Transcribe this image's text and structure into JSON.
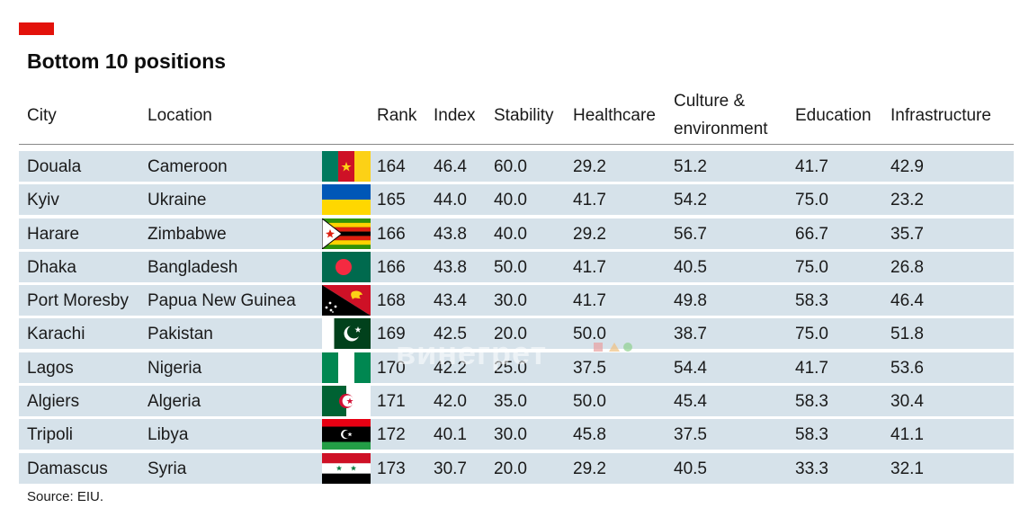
{
  "title": "Bottom 10 positions",
  "accent_color": "#e3120b",
  "row_color": "#d6e2ea",
  "headers": {
    "city": "City",
    "location": "Location",
    "rank": "Rank",
    "index": "Index",
    "stability": "Stability",
    "healthcare": "Healthcare",
    "culture_line1": "Culture &",
    "culture_line2": "environment",
    "education": "Education",
    "infrastructure": "Infrastructure"
  },
  "rows": [
    {
      "city": "Douala",
      "location": "Cameroon",
      "flag": "cameroon-flag",
      "rank": "164",
      "index": "46.4",
      "stability": "60.0",
      "healthcare": "29.2",
      "culture": "51.2",
      "education": "41.7",
      "infrastructure": "42.9"
    },
    {
      "city": "Kyiv",
      "location": "Ukraine",
      "flag": "ukraine-flag",
      "rank": "165",
      "index": "44.0",
      "stability": "40.0",
      "healthcare": "41.7",
      "culture": "54.2",
      "education": "75.0",
      "infrastructure": "23.2"
    },
    {
      "city": "Harare",
      "location": "Zimbabwe",
      "flag": "zimbabwe-flag",
      "rank": "166",
      "index": "43.8",
      "stability": "40.0",
      "healthcare": "29.2",
      "culture": "56.7",
      "education": "66.7",
      "infrastructure": "35.7"
    },
    {
      "city": "Dhaka",
      "location": "Bangladesh",
      "flag": "bangladesh-flag",
      "rank": "166",
      "index": "43.8",
      "stability": "50.0",
      "healthcare": "41.7",
      "culture": "40.5",
      "education": "75.0",
      "infrastructure": "26.8"
    },
    {
      "city": "Port Moresby",
      "location": "Papua New Guinea",
      "flag": "papua-new-guinea-flag",
      "rank": "168",
      "index": "43.4",
      "stability": "30.0",
      "healthcare": "41.7",
      "culture": "49.8",
      "education": "58.3",
      "infrastructure": "46.4"
    },
    {
      "city": "Karachi",
      "location": "Pakistan",
      "flag": "pakistan-flag",
      "rank": "169",
      "index": "42.5",
      "stability": "20.0",
      "healthcare": "50.0",
      "culture": "38.7",
      "education": "75.0",
      "infrastructure": "51.8"
    },
    {
      "city": "Lagos",
      "location": "Nigeria",
      "flag": "nigeria-flag",
      "rank": "170",
      "index": "42.2",
      "stability": "25.0",
      "healthcare": "37.5",
      "culture": "54.4",
      "education": "41.7",
      "infrastructure": "53.6"
    },
    {
      "city": "Algiers",
      "location": "Algeria",
      "flag": "algeria-flag",
      "rank": "171",
      "index": "42.0",
      "stability": "35.0",
      "healthcare": "50.0",
      "culture": "45.4",
      "education": "58.3",
      "infrastructure": "30.4"
    },
    {
      "city": "Tripoli",
      "location": "Libya",
      "flag": "libya-flag",
      "rank": "172",
      "index": "40.1",
      "stability": "30.0",
      "healthcare": "45.8",
      "culture": "37.5",
      "education": "58.3",
      "infrastructure": "41.1"
    },
    {
      "city": "Damascus",
      "location": "Syria",
      "flag": "syria-flag",
      "rank": "173",
      "index": "30.7",
      "stability": "20.0",
      "healthcare": "29.2",
      "culture": "40.5",
      "education": "33.3",
      "infrastructure": "32.1"
    }
  ],
  "source": "Source: EIU.",
  "watermark": "винегрет"
}
